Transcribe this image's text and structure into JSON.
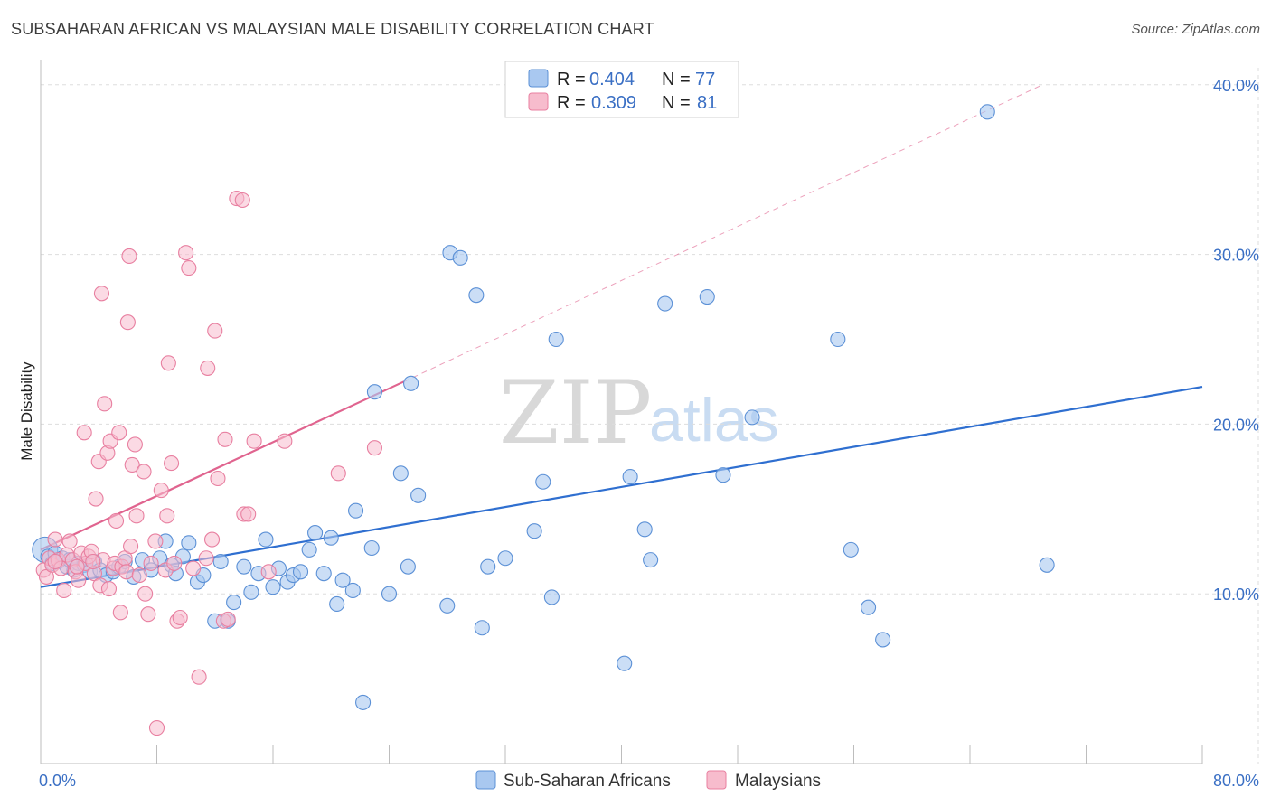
{
  "title": "SUBSAHARAN AFRICAN VS MALAYSIAN MALE DISABILITY CORRELATION CHART",
  "source": "Source: ZipAtlas.com",
  "watermark": {
    "part1": "ZIP",
    "part2": "atlas"
  },
  "colors": {
    "blue_fill": "#a9c8f0",
    "blue_stroke": "#5b90d6",
    "blue_line": "#2f6fd0",
    "pink_fill": "#f7bccd",
    "pink_stroke": "#e87fa0",
    "pink_line": "#e0648f",
    "grid": "#dddddd",
    "axis_label": "#3a6fc4"
  },
  "legend": {
    "row1": {
      "r_label": "R = ",
      "r_value": "0.404",
      "n_label": "N = ",
      "n_value": "77"
    },
    "row2": {
      "r_label": "R = ",
      "r_value": "0.309",
      "n_label": "N = ",
      "n_value": "81"
    }
  },
  "chart_data": {
    "type": "scatter",
    "xlabel": "",
    "ylabel": "Male Disability",
    "xlim": [
      0,
      80
    ],
    "ylim": [
      0,
      41
    ],
    "x_tick_labels": [
      {
        "value": 0,
        "label": "0.0%"
      },
      {
        "value": 80,
        "label": "80.0%"
      }
    ],
    "y_tick_labels": [
      {
        "value": 10,
        "label": "10.0%"
      },
      {
        "value": 20,
        "label": "20.0%"
      },
      {
        "value": 30,
        "label": "30.0%"
      },
      {
        "value": 40,
        "label": "40.0%"
      }
    ],
    "series": [
      {
        "name": "Sub-Saharan Africans",
        "r": 0.404,
        "n": 77,
        "trend": {
          "x0": 0,
          "y0": 10.4,
          "x1": 80,
          "y1": 22.2,
          "dashed_extension": false
        },
        "points": [
          [
            0.3,
            12.6
          ],
          [
            0.5,
            12.2
          ],
          [
            0.8,
            11.8
          ],
          [
            1.0,
            12.4
          ],
          [
            1.2,
            11.9
          ],
          [
            1.5,
            12.1
          ],
          [
            1.8,
            11.6
          ],
          [
            2.0,
            12.0
          ],
          [
            2.3,
            11.4
          ],
          [
            2.6,
            11.8
          ],
          [
            3.0,
            11.7
          ],
          [
            3.4,
            11.3
          ],
          [
            3.7,
            11.9
          ],
          [
            4.1,
            11.4
          ],
          [
            4.5,
            11.1
          ],
          [
            5.0,
            11.3
          ],
          [
            5.4,
            11.6
          ],
          [
            5.8,
            11.9
          ],
          [
            6.4,
            11.0
          ],
          [
            7.0,
            12.0
          ],
          [
            7.6,
            11.4
          ],
          [
            8.2,
            12.1
          ],
          [
            8.6,
            13.1
          ],
          [
            9.0,
            11.7
          ],
          [
            9.3,
            11.2
          ],
          [
            9.8,
            12.2
          ],
          [
            10.2,
            13.0
          ],
          [
            10.8,
            10.7
          ],
          [
            11.2,
            11.1
          ],
          [
            12.0,
            8.4
          ],
          [
            12.4,
            11.9
          ],
          [
            12.9,
            8.4
          ],
          [
            13.3,
            9.5
          ],
          [
            14.0,
            11.6
          ],
          [
            14.5,
            10.1
          ],
          [
            15.0,
            11.2
          ],
          [
            15.5,
            13.2
          ],
          [
            16.0,
            10.4
          ],
          [
            16.4,
            11.5
          ],
          [
            17.0,
            10.7
          ],
          [
            17.4,
            11.1
          ],
          [
            17.9,
            11.3
          ],
          [
            18.5,
            12.6
          ],
          [
            18.9,
            13.6
          ],
          [
            19.5,
            11.2
          ],
          [
            20.0,
            13.3
          ],
          [
            20.4,
            9.4
          ],
          [
            20.8,
            10.8
          ],
          [
            21.5,
            10.2
          ],
          [
            21.7,
            14.9
          ],
          [
            22.2,
            3.6
          ],
          [
            22.8,
            12.7
          ],
          [
            23.0,
            21.9
          ],
          [
            24.0,
            10.0
          ],
          [
            24.8,
            17.1
          ],
          [
            25.3,
            11.6
          ],
          [
            25.5,
            22.4
          ],
          [
            26.0,
            15.8
          ],
          [
            28.0,
            9.3
          ],
          [
            28.2,
            30.1
          ],
          [
            28.9,
            29.8
          ],
          [
            30.0,
            27.6
          ],
          [
            30.4,
            8.0
          ],
          [
            30.8,
            11.6
          ],
          [
            32.0,
            12.1
          ],
          [
            34.0,
            13.7
          ],
          [
            34.6,
            16.6
          ],
          [
            35.2,
            9.8
          ],
          [
            35.5,
            25.0
          ],
          [
            40.2,
            5.9
          ],
          [
            40.6,
            16.9
          ],
          [
            41.6,
            13.8
          ],
          [
            42.0,
            12.0
          ],
          [
            43.0,
            27.1
          ],
          [
            45.9,
            27.5
          ],
          [
            47.0,
            17.0
          ],
          [
            49.0,
            20.4
          ],
          [
            54.9,
            25.0
          ],
          [
            55.8,
            12.6
          ],
          [
            57.0,
            9.2
          ],
          [
            58.0,
            7.3
          ],
          [
            69.3,
            11.7
          ],
          [
            65.2,
            38.4
          ]
        ]
      },
      {
        "name": "Malaysians",
        "r": 0.309,
        "n": 81,
        "trend": {
          "x0": 0,
          "y0": 12.6,
          "x1": 25,
          "y1": 22.5,
          "dashed_extension": true,
          "ext_x1": 69,
          "ext_y1": 40.0
        },
        "points": [
          [
            0.2,
            11.4
          ],
          [
            0.4,
            11.0
          ],
          [
            0.6,
            12.1
          ],
          [
            0.8,
            11.7
          ],
          [
            1.0,
            13.2
          ],
          [
            1.2,
            12.0
          ],
          [
            1.4,
            11.5
          ],
          [
            1.6,
            10.2
          ],
          [
            1.8,
            12.3
          ],
          [
            2.0,
            13.1
          ],
          [
            2.2,
            12.0
          ],
          [
            2.4,
            11.3
          ],
          [
            2.6,
            10.8
          ],
          [
            2.8,
            12.4
          ],
          [
            3.0,
            19.5
          ],
          [
            3.1,
            11.8
          ],
          [
            3.3,
            12.2
          ],
          [
            3.5,
            12.5
          ],
          [
            3.7,
            11.2
          ],
          [
            3.8,
            15.6
          ],
          [
            4.0,
            17.8
          ],
          [
            4.1,
            10.5
          ],
          [
            4.2,
            27.7
          ],
          [
            4.3,
            12.0
          ],
          [
            4.4,
            21.2
          ],
          [
            4.6,
            18.3
          ],
          [
            4.7,
            10.3
          ],
          [
            4.8,
            19.0
          ],
          [
            5.0,
            11.5
          ],
          [
            5.1,
            11.8
          ],
          [
            5.2,
            14.3
          ],
          [
            5.4,
            19.5
          ],
          [
            5.5,
            8.9
          ],
          [
            5.6,
            11.6
          ],
          [
            5.8,
            12.1
          ],
          [
            5.9,
            11.3
          ],
          [
            6.0,
            26.0
          ],
          [
            6.1,
            29.9
          ],
          [
            6.2,
            12.8
          ],
          [
            6.3,
            17.6
          ],
          [
            6.5,
            18.8
          ],
          [
            6.6,
            14.6
          ],
          [
            6.8,
            11.1
          ],
          [
            7.1,
            17.2
          ],
          [
            7.2,
            10.0
          ],
          [
            7.4,
            8.8
          ],
          [
            7.6,
            11.8
          ],
          [
            7.9,
            13.1
          ],
          [
            8.0,
            2.1
          ],
          [
            8.3,
            16.1
          ],
          [
            8.6,
            11.4
          ],
          [
            8.7,
            14.6
          ],
          [
            8.8,
            23.6
          ],
          [
            9.0,
            17.7
          ],
          [
            9.2,
            11.8
          ],
          [
            9.4,
            8.4
          ],
          [
            9.6,
            8.6
          ],
          [
            10.0,
            30.1
          ],
          [
            10.2,
            29.2
          ],
          [
            10.5,
            11.5
          ],
          [
            10.9,
            5.1
          ],
          [
            11.4,
            12.1
          ],
          [
            11.5,
            23.3
          ],
          [
            11.8,
            13.2
          ],
          [
            12.0,
            25.5
          ],
          [
            12.2,
            16.8
          ],
          [
            12.6,
            8.4
          ],
          [
            12.7,
            19.1
          ],
          [
            12.9,
            8.5
          ],
          [
            13.5,
            33.3
          ],
          [
            13.9,
            33.2
          ],
          [
            14.0,
            14.7
          ],
          [
            14.3,
            14.7
          ],
          [
            14.7,
            19.0
          ],
          [
            15.7,
            11.3
          ],
          [
            16.8,
            19.0
          ],
          [
            20.5,
            17.1
          ],
          [
            23.0,
            18.6
          ],
          [
            1.0,
            11.9
          ],
          [
            2.5,
            11.6
          ],
          [
            3.6,
            11.9
          ]
        ]
      }
    ]
  }
}
